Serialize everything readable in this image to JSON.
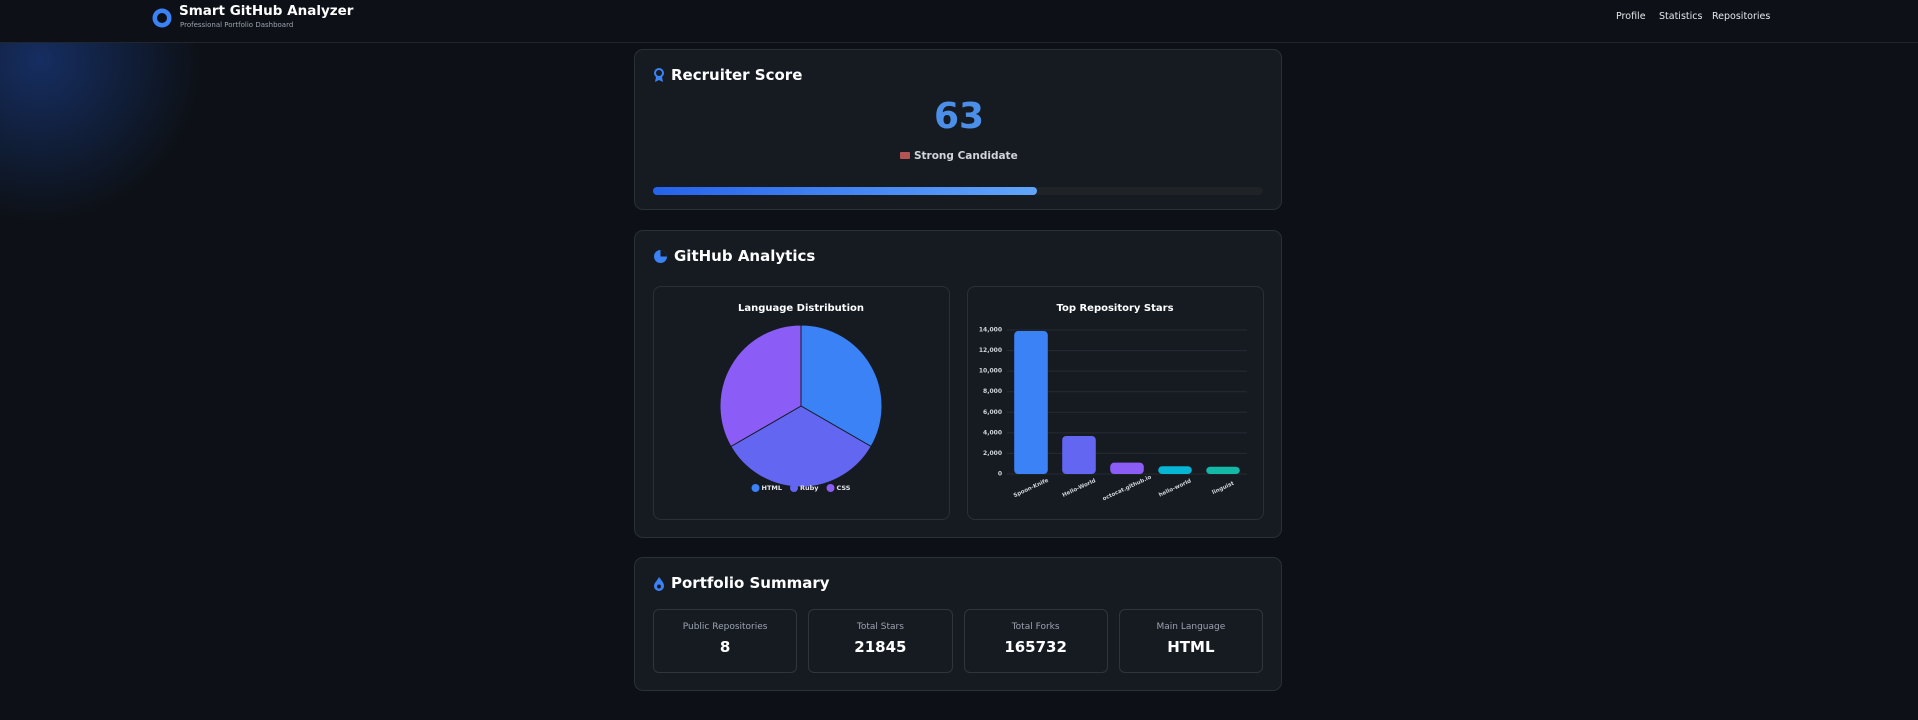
{
  "header": {
    "title": "Smart GitHub Analyzer",
    "subtitle": "Professional Portfolio Dashboard",
    "nav": [
      "Profile",
      "Statistics",
      "Repositories"
    ]
  },
  "recruiter": {
    "title": "Recruiter Score",
    "score": 63,
    "label": "Strong Candidate"
  },
  "analytics": {
    "title": "GitHub Analytics"
  },
  "chart_data": [
    {
      "type": "pie",
      "title": "Language Distribution",
      "categories": [
        "HTML",
        "Ruby",
        "CSS"
      ],
      "values": [
        1,
        1,
        1
      ],
      "colors": [
        "#3b82f6",
        "#6366f1",
        "#8b5cf6"
      ],
      "legend": "bottom"
    },
    {
      "type": "bar",
      "title": "Top Repository Stars",
      "categories": [
        "Spoon-Knife",
        "Hello-World",
        "octocat.github.io",
        "hello-worId",
        "linguist"
      ],
      "values": [
        13900,
        3700,
        1100,
        750,
        700
      ],
      "colors": [
        "#3b82f6",
        "#6366f1",
        "#8b5cf6",
        "#06b6d4",
        "#14b8a6"
      ],
      "ylim": [
        0,
        14000
      ],
      "yticks": [
        0,
        {
          "value": 2000,
          "label": "2,000"
        },
        {
          "value": 4000,
          "label": "4,000"
        },
        {
          "value": 6000,
          "label": "6,000"
        },
        {
          "value": 8000,
          "label": "8,000"
        },
        {
          "value": 10000,
          "label": "10,000"
        },
        {
          "value": 12000,
          "label": "12,000"
        },
        {
          "value": 14000,
          "label": "14,000"
        }
      ],
      "grid": true
    }
  ],
  "summary": {
    "title": "Portfolio Summary",
    "stats": [
      {
        "label": "Public Repositories",
        "value": 8
      },
      {
        "label": "Total Stars",
        "value": 21845
      },
      {
        "label": "Total Forks",
        "value": 165732
      },
      {
        "label": "Main Language",
        "value": "HTML"
      }
    ]
  }
}
